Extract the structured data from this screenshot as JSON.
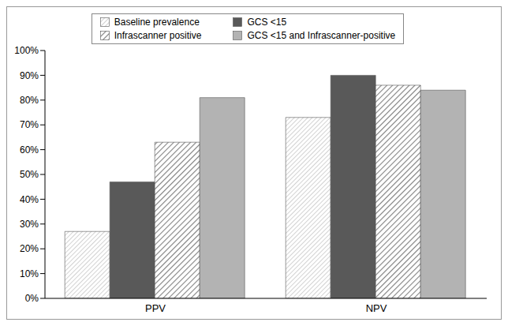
{
  "chart_data": {
    "type": "bar",
    "categories": [
      "PPV",
      "NPV"
    ],
    "series": [
      {
        "name": "Baseline prevalence",
        "color": "#a6a6a6",
        "values": [
          27,
          73
        ]
      },
      {
        "name": "GCS <15",
        "color": "#595959",
        "values": [
          47,
          90
        ]
      },
      {
        "name": "Infrascanner positive",
        "color": "#7f7f7f",
        "values": [
          63,
          86
        ]
      },
      {
        "name": "GCS <15 and Infrascanner-positive",
        "color": "#b3b3b3",
        "values": [
          81,
          84
        ]
      }
    ],
    "ylim": [
      0,
      100
    ],
    "yticks": [
      {
        "value": 0,
        "label": "0%"
      },
      {
        "value": 10,
        "label": "10%"
      },
      {
        "value": 20,
        "label": "20%"
      },
      {
        "value": 30,
        "label": "30%"
      },
      {
        "value": 40,
        "label": "40%"
      },
      {
        "value": 50,
        "label": "50%"
      },
      {
        "value": 60,
        "label": "60%"
      },
      {
        "value": 70,
        "label": "70%"
      },
      {
        "value": 80,
        "label": "80%"
      },
      {
        "value": 90,
        "label": "90%"
      },
      {
        "value": 100,
        "label": "100%"
      }
    ],
    "grid": false,
    "legend": "top"
  }
}
